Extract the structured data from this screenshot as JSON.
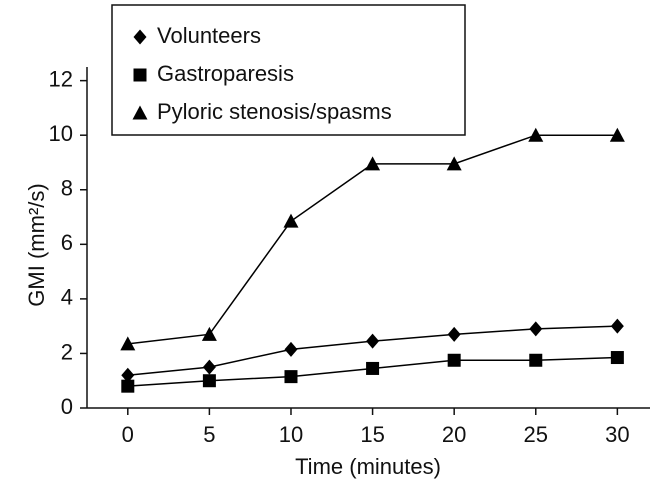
{
  "chart_data": {
    "type": "line",
    "x": [
      0,
      5,
      10,
      15,
      20,
      25,
      30
    ],
    "series": [
      {
        "name": "Volunteers",
        "color": "#000000",
        "marker": "diamond",
        "values": [
          1.2,
          1.5,
          2.15,
          2.45,
          2.7,
          2.9,
          3.0
        ]
      },
      {
        "name": "Gastroparesis",
        "color": "#000000",
        "marker": "square",
        "values": [
          0.8,
          1.0,
          1.15,
          1.45,
          1.75,
          1.75,
          1.85
        ]
      },
      {
        "name": "Pyloric stenosis/spasms",
        "color": "#000000",
        "marker": "triangle",
        "values": [
          2.35,
          2.7,
          6.85,
          8.95,
          8.95,
          10.0,
          10.0
        ]
      }
    ],
    "xlabel": "Time (minutes)",
    "ylabel": "GMI (mm²/s)",
    "xlim": [
      -2.5,
      32
    ],
    "ylim": [
      0,
      12.5
    ],
    "xticks": [
      0,
      5,
      10,
      15,
      20,
      25,
      30
    ],
    "yticks": [
      0,
      2,
      4,
      6,
      8,
      10,
      12
    ],
    "grid": false,
    "legend": "upper left"
  }
}
